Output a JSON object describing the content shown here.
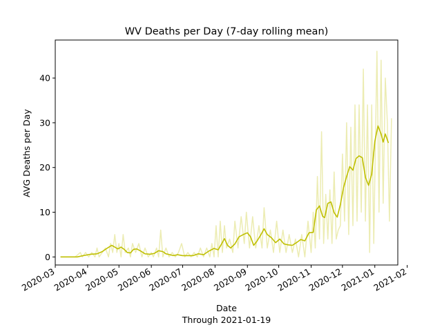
{
  "chart_data": {
    "type": "line",
    "title": "WV Deaths per Day (7-day rolling mean)",
    "xlabel": "Date",
    "xlabel_sub": "Through 2021-01-19",
    "ylabel": "AVG Deaths per Day",
    "xlim": [
      "2020-03-01",
      "2021-01-23"
    ],
    "ylim": [
      -1.8,
      48.5
    ],
    "x_ticks": [
      "2020-03",
      "2020-04",
      "2020-05",
      "2020-06",
      "2020-07",
      "2020-08",
      "2020-09",
      "2020-10",
      "2020-11",
      "2020-12",
      "2021-01",
      "2021-02"
    ],
    "y_ticks": [
      0,
      10,
      20,
      30,
      40
    ],
    "grid": false,
    "series": [
      {
        "kind": "daily",
        "color": "#bfbf00",
        "opacity": 0.3,
        "points": [
          [
            "2020-03-06",
            0
          ],
          [
            "2020-03-20",
            0
          ],
          [
            "2020-03-25",
            1
          ],
          [
            "2020-03-27",
            0
          ],
          [
            "2020-03-30",
            1
          ],
          [
            "2020-04-02",
            0
          ],
          [
            "2020-04-05",
            1
          ],
          [
            "2020-04-08",
            0
          ],
          [
            "2020-04-10",
            2
          ],
          [
            "2020-04-12",
            0
          ],
          [
            "2020-04-15",
            1
          ],
          [
            "2020-04-18",
            2
          ],
          [
            "2020-04-21",
            0
          ],
          [
            "2020-04-23",
            3
          ],
          [
            "2020-04-25",
            1
          ],
          [
            "2020-04-27",
            5
          ],
          [
            "2020-04-29",
            1
          ],
          [
            "2020-05-01",
            3
          ],
          [
            "2020-05-03",
            0
          ],
          [
            "2020-05-05",
            5
          ],
          [
            "2020-05-07",
            1
          ],
          [
            "2020-05-10",
            2
          ],
          [
            "2020-05-12",
            0
          ],
          [
            "2020-05-14",
            3
          ],
          [
            "2020-05-17",
            1
          ],
          [
            "2020-05-20",
            3
          ],
          [
            "2020-05-23",
            0
          ],
          [
            "2020-05-26",
            2
          ],
          [
            "2020-05-29",
            0
          ],
          [
            "2020-06-01",
            1
          ],
          [
            "2020-06-03",
            0
          ],
          [
            "2020-06-06",
            2
          ],
          [
            "2020-06-08",
            0
          ],
          [
            "2020-06-10",
            6
          ],
          [
            "2020-06-12",
            0
          ],
          [
            "2020-06-15",
            2
          ],
          [
            "2020-06-18",
            0
          ],
          [
            "2020-06-21",
            1
          ],
          [
            "2020-06-24",
            0
          ],
          [
            "2020-06-27",
            1
          ],
          [
            "2020-06-30",
            3
          ],
          [
            "2020-07-03",
            0
          ],
          [
            "2020-07-06",
            1
          ],
          [
            "2020-07-09",
            0
          ],
          [
            "2020-07-12",
            1
          ],
          [
            "2020-07-15",
            0
          ],
          [
            "2020-07-18",
            2
          ],
          [
            "2020-07-21",
            0
          ],
          [
            "2020-07-24",
            2
          ],
          [
            "2020-07-27",
            0
          ],
          [
            "2020-07-29",
            3
          ],
          [
            "2020-07-31",
            0
          ],
          [
            "2020-08-02",
            7
          ],
          [
            "2020-08-04",
            0
          ],
          [
            "2020-08-06",
            8
          ],
          [
            "2020-08-08",
            1
          ],
          [
            "2020-08-10",
            7
          ],
          [
            "2020-08-12",
            2
          ],
          [
            "2020-08-15",
            4
          ],
          [
            "2020-08-18",
            1
          ],
          [
            "2020-08-20",
            8
          ],
          [
            "2020-08-23",
            2
          ],
          [
            "2020-08-26",
            9
          ],
          [
            "2020-08-29",
            3
          ],
          [
            "2020-08-31",
            10
          ],
          [
            "2020-09-03",
            2
          ],
          [
            "2020-09-06",
            9
          ],
          [
            "2020-09-09",
            2
          ],
          [
            "2020-09-12",
            7
          ],
          [
            "2020-09-15",
            2
          ],
          [
            "2020-09-17",
            11
          ],
          [
            "2020-09-20",
            2
          ],
          [
            "2020-09-23",
            6
          ],
          [
            "2020-09-26",
            1
          ],
          [
            "2020-09-29",
            8
          ],
          [
            "2020-10-02",
            1
          ],
          [
            "2020-10-05",
            6
          ],
          [
            "2020-10-08",
            1
          ],
          [
            "2020-10-11",
            5
          ],
          [
            "2020-10-14",
            1
          ],
          [
            "2020-10-17",
            4
          ],
          [
            "2020-10-20",
            0
          ],
          [
            "2020-10-23",
            5
          ],
          [
            "2020-10-26",
            0
          ],
          [
            "2020-10-29",
            8
          ],
          [
            "2020-11-01",
            1
          ],
          [
            "2020-11-03",
            10
          ],
          [
            "2020-11-05",
            2
          ],
          [
            "2020-11-07",
            18
          ],
          [
            "2020-11-09",
            4
          ],
          [
            "2020-11-11",
            28
          ],
          [
            "2020-11-13",
            3
          ],
          [
            "2020-11-15",
            14
          ],
          [
            "2020-11-17",
            4
          ],
          [
            "2020-11-19",
            15
          ],
          [
            "2020-11-21",
            3
          ],
          [
            "2020-11-23",
            19
          ],
          [
            "2020-11-25",
            4
          ],
          [
            "2020-11-27",
            6
          ],
          [
            "2020-11-29",
            7
          ],
          [
            "2020-12-01",
            23
          ],
          [
            "2020-12-03",
            8
          ],
          [
            "2020-12-05",
            30
          ],
          [
            "2020-12-07",
            5
          ],
          [
            "2020-12-09",
            29
          ],
          [
            "2020-12-11",
            7
          ],
          [
            "2020-12-13",
            34
          ],
          [
            "2020-12-15",
            8
          ],
          [
            "2020-12-17",
            34
          ],
          [
            "2020-12-19",
            10
          ],
          [
            "2020-12-21",
            42
          ],
          [
            "2020-12-23",
            8
          ],
          [
            "2020-12-25",
            34
          ],
          [
            "2020-12-27",
            1
          ],
          [
            "2020-12-29",
            34
          ],
          [
            "2020-12-31",
            3
          ],
          [
            "2021-01-03",
            46
          ],
          [
            "2021-01-05",
            10
          ],
          [
            "2021-01-07",
            44
          ],
          [
            "2021-01-09",
            12
          ],
          [
            "2021-01-11",
            40
          ],
          [
            "2021-01-13",
            30
          ],
          [
            "2021-01-15",
            8
          ],
          [
            "2021-01-17",
            31
          ]
        ]
      },
      {
        "kind": "rolling-mean",
        "color": "#bfbf00",
        "opacity": 1,
        "points": [
          [
            "2020-03-06",
            0
          ],
          [
            "2020-03-22",
            0
          ],
          [
            "2020-03-28",
            0.3
          ],
          [
            "2020-04-04",
            0.6
          ],
          [
            "2020-04-10",
            0.7
          ],
          [
            "2020-04-15",
            1.2
          ],
          [
            "2020-04-20",
            2.0
          ],
          [
            "2020-04-24",
            2.6
          ],
          [
            "2020-04-27",
            2.2
          ],
          [
            "2020-04-30",
            1.8
          ],
          [
            "2020-05-03",
            2.2
          ],
          [
            "2020-05-06",
            1.7
          ],
          [
            "2020-05-09",
            1.0
          ],
          [
            "2020-05-12",
            0.9
          ],
          [
            "2020-05-15",
            1.7
          ],
          [
            "2020-05-18",
            1.8
          ],
          [
            "2020-05-22",
            1.3
          ],
          [
            "2020-05-26",
            0.7
          ],
          [
            "2020-05-31",
            0.6
          ],
          [
            "2020-06-04",
            0.8
          ],
          [
            "2020-06-08",
            1.4
          ],
          [
            "2020-06-12",
            1.2
          ],
          [
            "2020-06-15",
            0.7
          ],
          [
            "2020-06-19",
            0.5
          ],
          [
            "2020-06-22",
            0.3
          ],
          [
            "2020-06-26",
            0.5
          ],
          [
            "2020-07-01",
            0.3
          ],
          [
            "2020-07-06",
            0.3
          ],
          [
            "2020-07-11",
            0.3
          ],
          [
            "2020-07-16",
            0.7
          ],
          [
            "2020-07-21",
            0.5
          ],
          [
            "2020-07-26",
            1.3
          ],
          [
            "2020-07-31",
            1.9
          ],
          [
            "2020-08-04",
            1.6
          ],
          [
            "2020-08-07",
            2.8
          ],
          [
            "2020-08-10",
            4.1
          ],
          [
            "2020-08-13",
            2.6
          ],
          [
            "2020-08-16",
            2.0
          ],
          [
            "2020-08-20",
            2.9
          ],
          [
            "2020-08-24",
            4.5
          ],
          [
            "2020-08-28",
            5.0
          ],
          [
            "2020-09-01",
            5.4
          ],
          [
            "2020-09-04",
            4.5
          ],
          [
            "2020-09-07",
            2.6
          ],
          [
            "2020-09-10",
            3.5
          ],
          [
            "2020-09-14",
            5.0
          ],
          [
            "2020-09-17",
            6.3
          ],
          [
            "2020-09-20",
            5.0
          ],
          [
            "2020-09-24",
            4.3
          ],
          [
            "2020-09-28",
            3.2
          ],
          [
            "2020-10-02",
            4.0
          ],
          [
            "2020-10-06",
            2.9
          ],
          [
            "2020-10-10",
            2.7
          ],
          [
            "2020-10-14",
            2.6
          ],
          [
            "2020-10-18",
            3.2
          ],
          [
            "2020-10-22",
            3.9
          ],
          [
            "2020-10-26",
            3.6
          ],
          [
            "2020-10-30",
            5.4
          ],
          [
            "2020-11-03",
            5.5
          ],
          [
            "2020-11-06",
            10.5
          ],
          [
            "2020-11-09",
            11.4
          ],
          [
            "2020-11-12",
            9.1
          ],
          [
            "2020-11-14",
            8.8
          ],
          [
            "2020-11-17",
            12.0
          ],
          [
            "2020-11-20",
            12.3
          ],
          [
            "2020-11-23",
            9.9
          ],
          [
            "2020-11-26",
            8.9
          ],
          [
            "2020-11-29",
            11.7
          ],
          [
            "2020-12-02",
            15.5
          ],
          [
            "2020-12-05",
            18.0
          ],
          [
            "2020-12-08",
            20.2
          ],
          [
            "2020-12-11",
            19.4
          ],
          [
            "2020-12-14",
            22.0
          ],
          [
            "2020-12-17",
            22.6
          ],
          [
            "2020-12-20",
            22.2
          ],
          [
            "2020-12-23",
            17.8
          ],
          [
            "2020-12-26",
            16.0
          ],
          [
            "2020-12-29",
            18.5
          ],
          [
            "2021-01-01",
            25.8
          ],
          [
            "2021-01-04",
            29.3
          ],
          [
            "2021-01-07",
            27.5
          ],
          [
            "2021-01-09",
            25.7
          ],
          [
            "2021-01-11",
            27.5
          ],
          [
            "2021-01-14",
            25.5
          ]
        ]
      }
    ]
  }
}
